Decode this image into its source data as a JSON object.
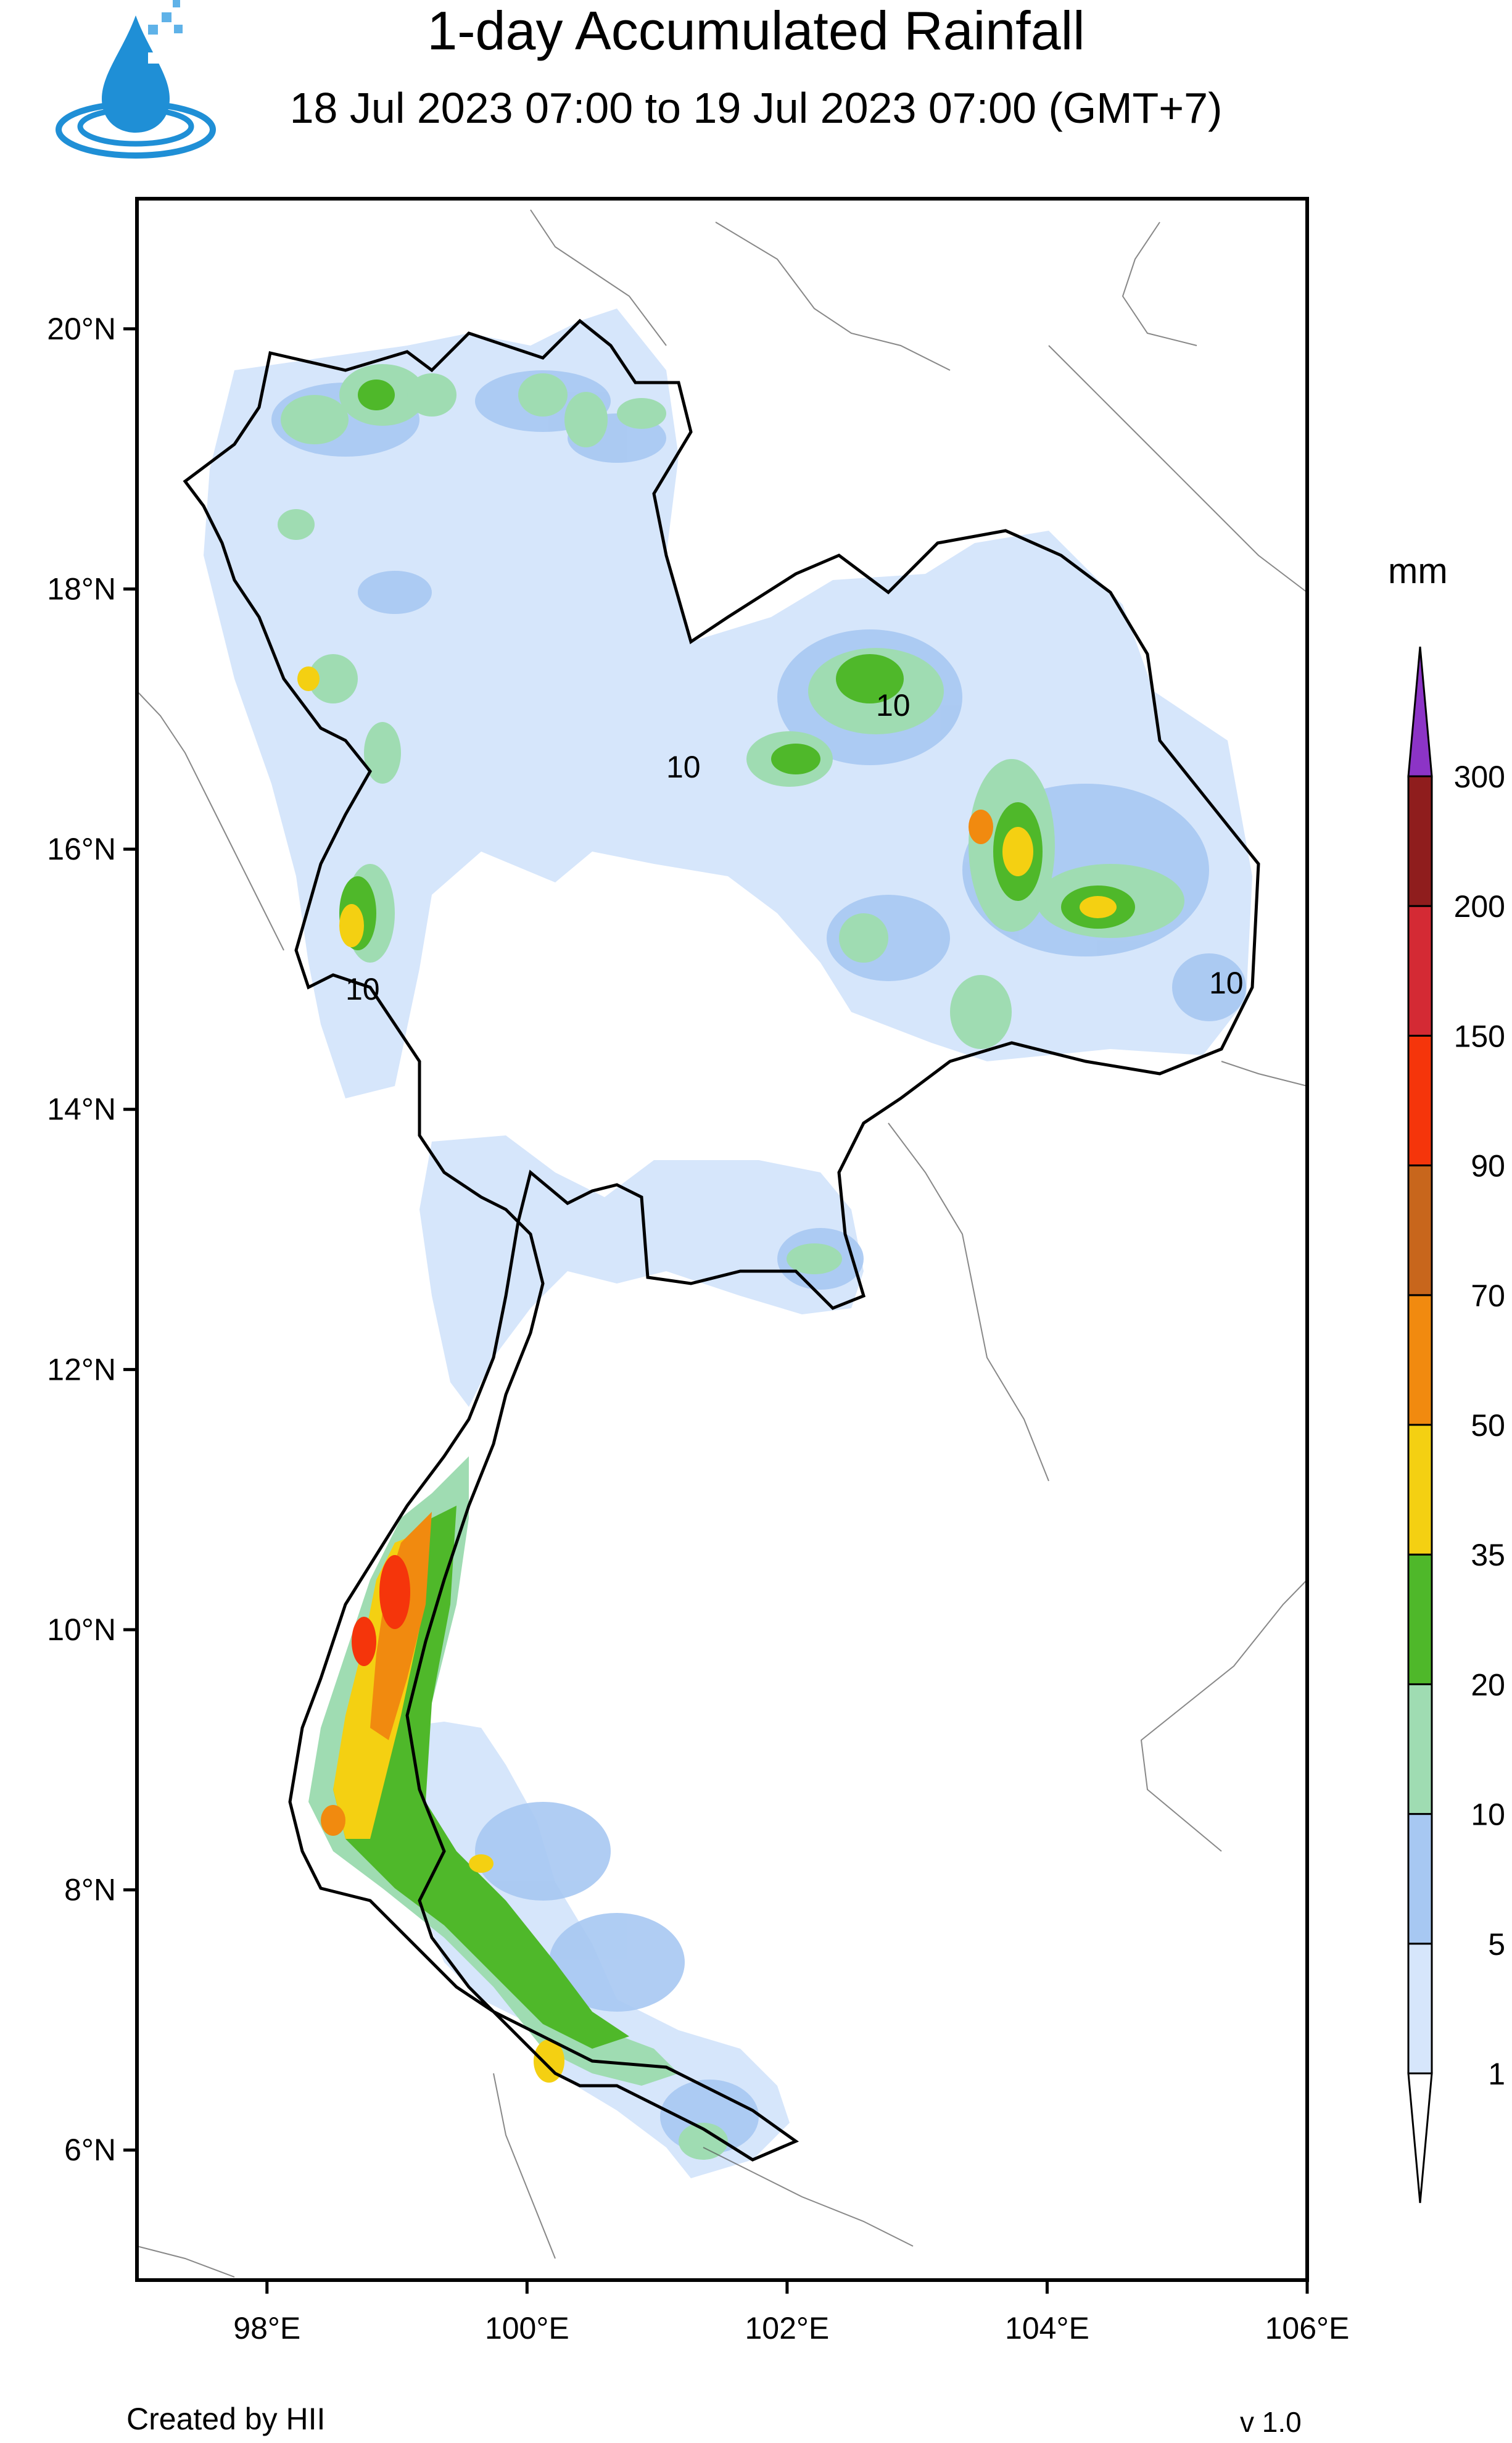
{
  "header": {
    "title": "1-day Accumulated Rainfall",
    "subtitle": "18 Jul 2023 07:00 to 19 Jul 2023 07:00 (GMT+7)"
  },
  "logo": {
    "icon": "water-drop-logo-icon",
    "color": "#1f8fd6"
  },
  "map": {
    "region": "Thailand",
    "lon_range": [
      97.0,
      106.0
    ],
    "lat_range": [
      5.0,
      21.0
    ],
    "lat_ticks": [
      {
        "value": 20,
        "label": "20°N"
      },
      {
        "value": 18,
        "label": "18°N"
      },
      {
        "value": 16,
        "label": "16°N"
      },
      {
        "value": 14,
        "label": "14°N"
      },
      {
        "value": 12,
        "label": "12°N"
      },
      {
        "value": 10,
        "label": "10°N"
      },
      {
        "value": 8,
        "label": "8°N"
      },
      {
        "value": 6,
        "label": "6°N"
      }
    ],
    "lon_ticks": [
      {
        "value": 98,
        "label": "98°E"
      },
      {
        "value": 100,
        "label": "100°E"
      },
      {
        "value": 102,
        "label": "102°E"
      },
      {
        "value": 104,
        "label": "104°E"
      },
      {
        "value": 106,
        "label": "106°E"
      }
    ],
    "contour_label": "10"
  },
  "colorbar": {
    "unit": "mm",
    "levels": [
      "1",
      "5",
      "10",
      "20",
      "35",
      "50",
      "70",
      "90",
      "150",
      "200",
      "300"
    ],
    "colors": [
      "#d6e6fb",
      "#a7c8f2",
      "#9fdcb2",
      "#4fb82a",
      "#f4d012",
      "#f18a0f",
      "#c8661c",
      "#f5350b",
      "#d42a34",
      "#8f1d1d",
      "#8c34c6"
    ]
  },
  "footer": {
    "credit": "Created by HII",
    "version": "v 1.0"
  }
}
